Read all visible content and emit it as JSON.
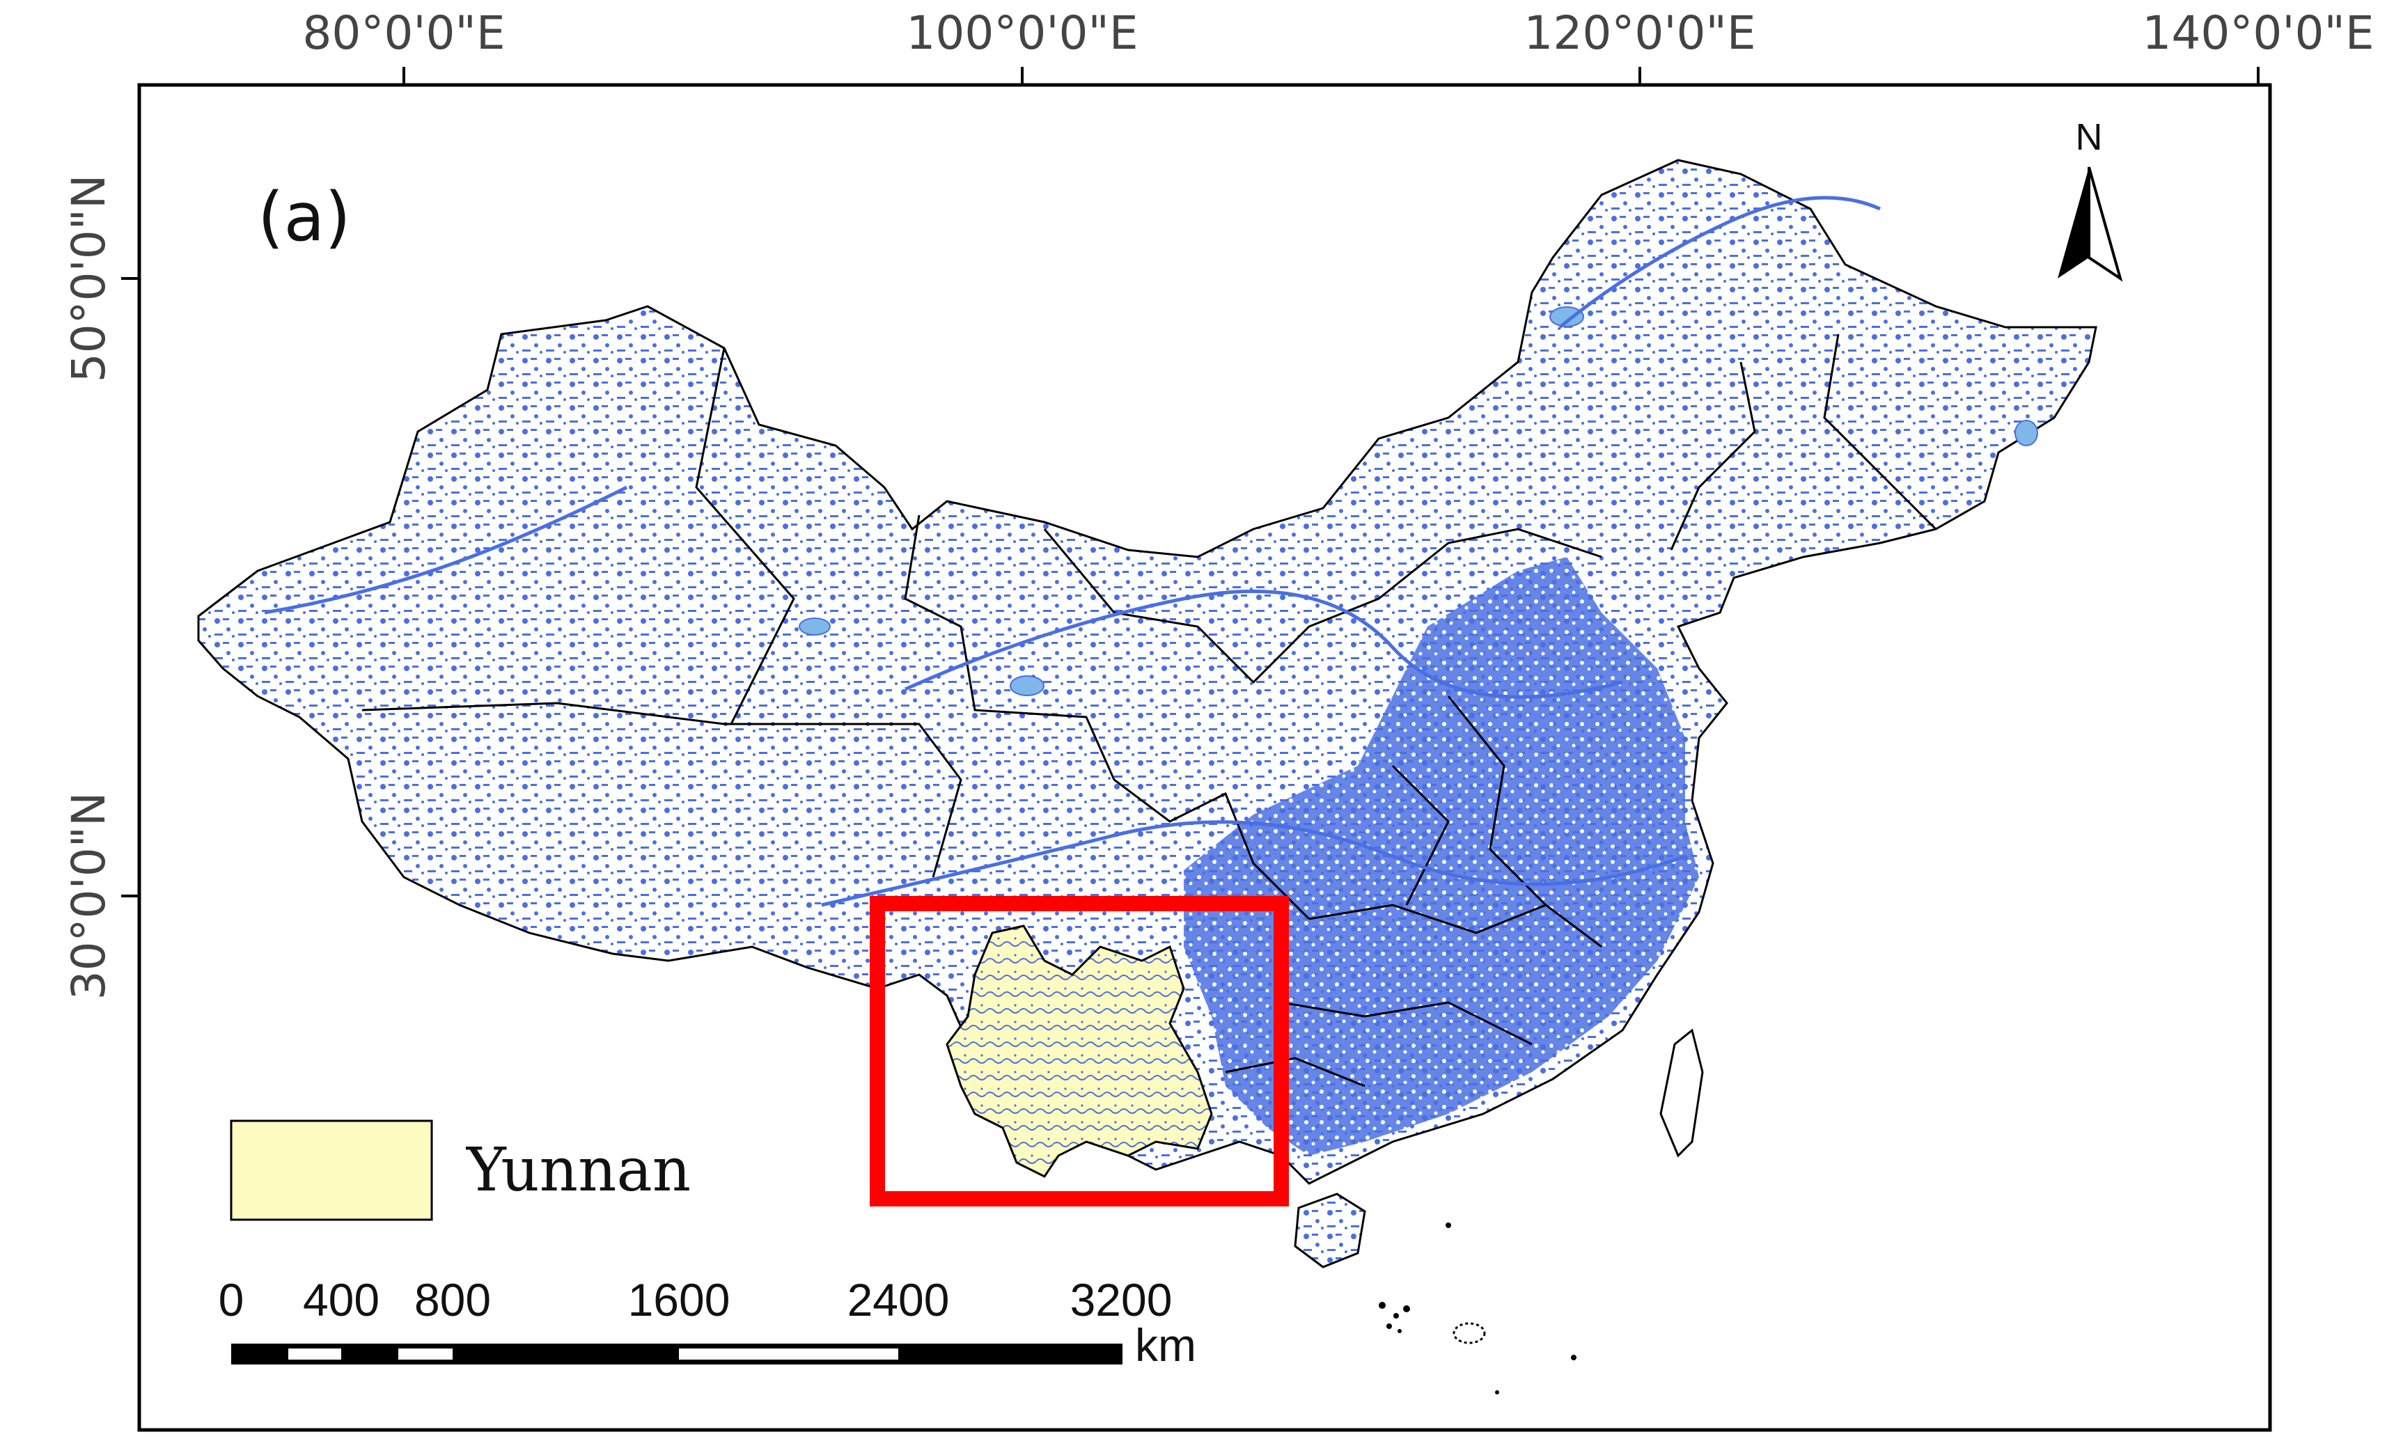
{
  "map": {
    "panel_label": "(a)",
    "lon_ticks": [
      "80°0'0\"E",
      "100°0'0\"E",
      "120°0'0\"E",
      "140°0'0\"E"
    ],
    "lat_ticks": [
      "50°0'0\"N",
      "30°0'0\"N"
    ],
    "north_arrow": {
      "label": "N"
    },
    "legend": {
      "label": "Yunnan",
      "swatch_color": "#fdfbc0"
    },
    "scale_bar": {
      "labels": [
        "0",
        "400",
        "800",
        "1600",
        "2400",
        "3200"
      ],
      "unit": "km"
    },
    "colors": {
      "water": "#4a6fe3",
      "lake": "#7fb7e8",
      "border": "#000000",
      "highlight_box": "#ff0000",
      "yunnan_fill": "#fdfbc0"
    }
  }
}
